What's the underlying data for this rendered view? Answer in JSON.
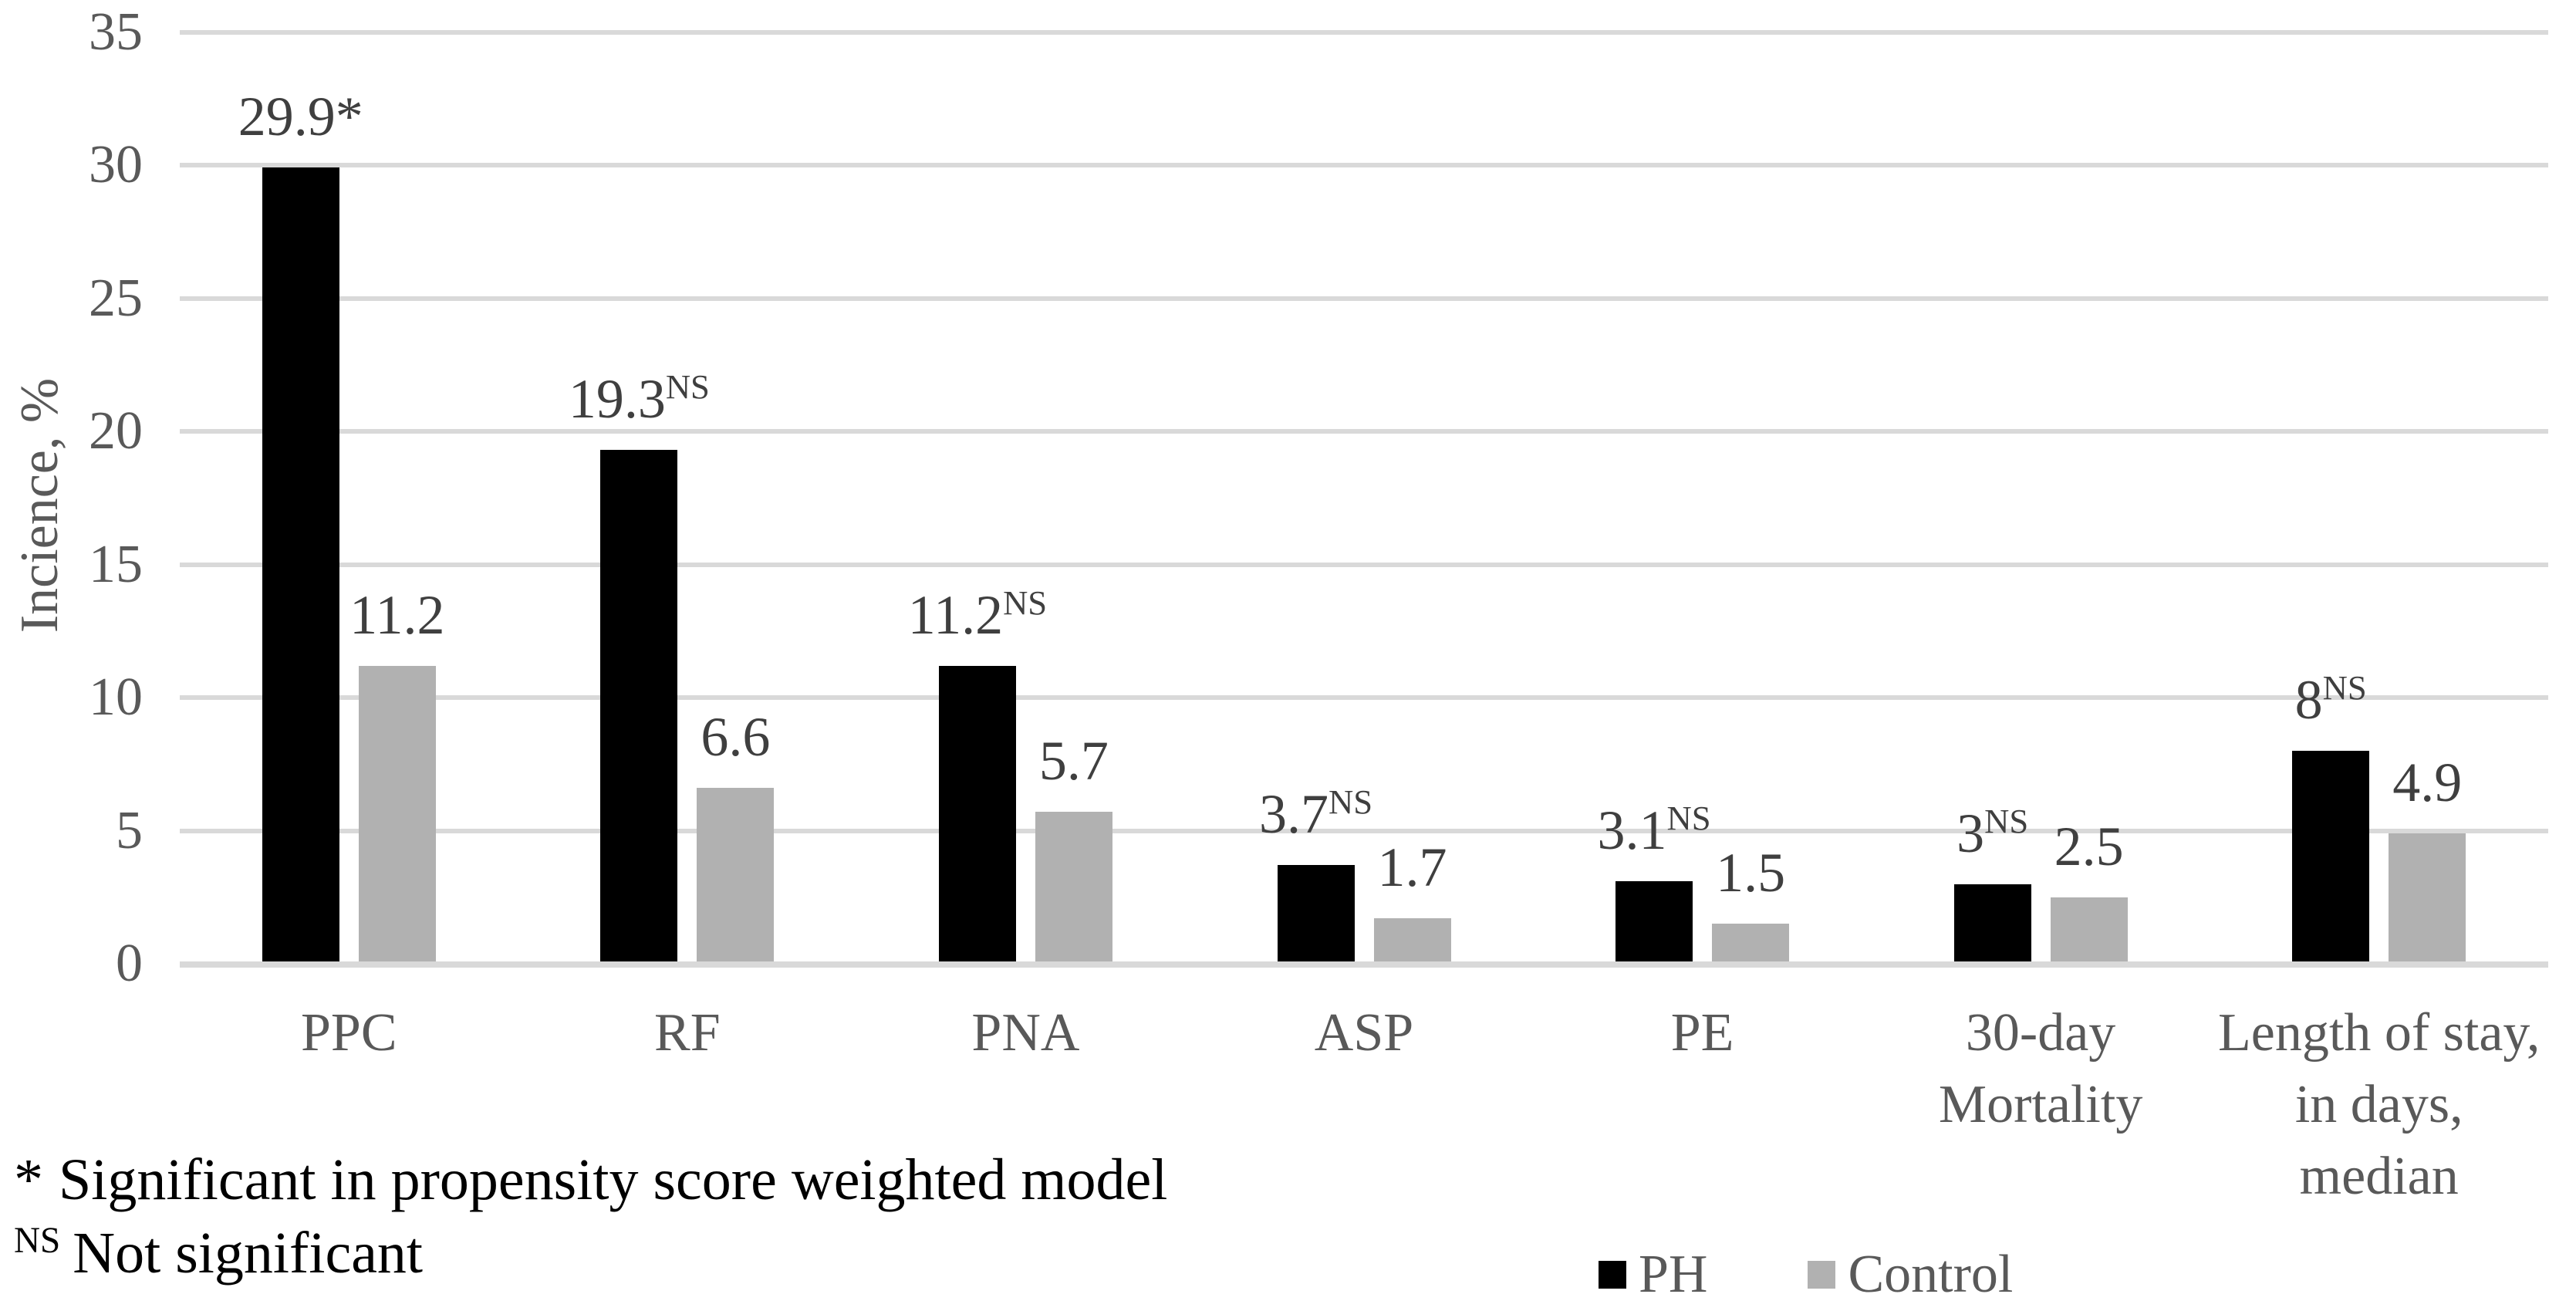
{
  "y_axis": {
    "title": "Incience, %",
    "ticks": [
      0,
      5,
      10,
      15,
      20,
      25,
      30,
      35
    ]
  },
  "footnotes": [
    {
      "marker": "*",
      "marker_superscript": false,
      "text": "Significant in propensity score weighted model"
    },
    {
      "marker": "NS",
      "marker_superscript": true,
      "text": "Not significant"
    }
  ],
  "legend": {
    "position": "bottom-right",
    "items": [
      {
        "label": "PH",
        "color": "#000000"
      },
      {
        "label": "Control",
        "color": "#b1b1b1"
      }
    ]
  },
  "colors": {
    "background": "#ffffff",
    "gridline": "#d9d9d9",
    "axis_line": "#d9d9d9",
    "tick_text": "#595959",
    "category_text": "#595959",
    "data_label_text": "#3f3f3f",
    "footnote_text": "#000000",
    "legend_text": "#595959",
    "ph_bar": "#000000",
    "control_bar": "#b1b1b1"
  },
  "chart_data": {
    "type": "bar",
    "title": "",
    "xlabel": "",
    "ylabel": "Incience, %",
    "ylim": [
      0,
      35
    ],
    "ytick_step": 5,
    "grid": true,
    "legend_position": "bottom-right",
    "categories": [
      "PPC",
      "RF",
      "PNA",
      "ASP",
      "PE",
      "30-day Mortality",
      "Length of stay, in days, median"
    ],
    "category_lines": [
      [
        "PPC"
      ],
      [
        "RF"
      ],
      [
        "PNA"
      ],
      [
        "ASP"
      ],
      [
        "PE"
      ],
      [
        "30-day",
        "Mortality"
      ],
      [
        "Length of stay,",
        "in days, median"
      ]
    ],
    "series": [
      {
        "name": "PH",
        "color": "#000000",
        "values": [
          29.9,
          19.3,
          11.2,
          3.7,
          3.1,
          3,
          8
        ],
        "labels": [
          "29.9*",
          "19.3",
          "11.2",
          "3.7",
          "3.1",
          "3",
          "8"
        ],
        "label_superscripts": [
          "",
          "NS",
          "NS",
          "NS",
          "NS",
          "NS",
          "NS"
        ]
      },
      {
        "name": "Control",
        "color": "#b1b1b1",
        "values": [
          11.2,
          6.6,
          5.7,
          1.7,
          1.5,
          2.5,
          4.9
        ],
        "labels": [
          "11.2",
          "6.6",
          "5.7",
          "1.7",
          "1.5",
          "2.5",
          "4.9"
        ],
        "label_superscripts": [
          "",
          "",
          "",
          "",
          "",
          "",
          ""
        ]
      }
    ]
  }
}
